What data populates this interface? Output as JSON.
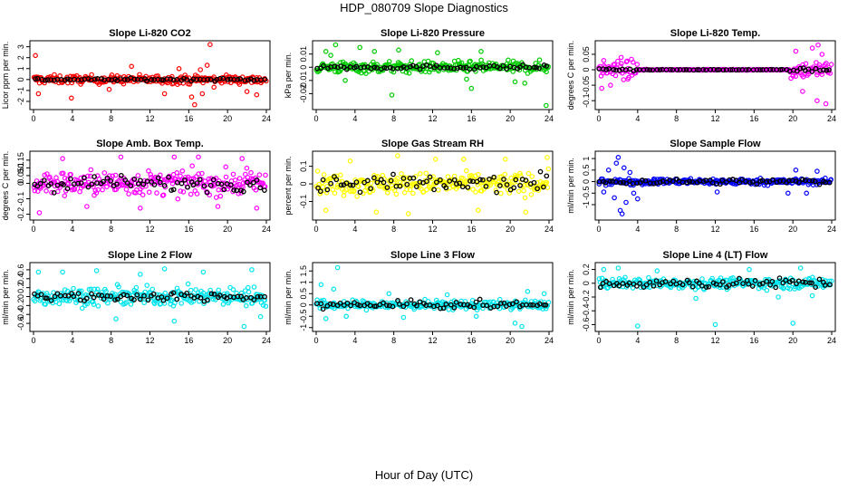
{
  "figure": {
    "title": "HDP_080709  Slope Diagnostics",
    "xlabel": "Hour of Day (UTC)"
  },
  "chart_data": [
    {
      "type": "scatter",
      "title": "Slope Li-820 CO2",
      "ylabel": "Licor ppm per min.",
      "color": "#ff0000",
      "xlim": [
        0,
        24
      ],
      "ylim": [
        -2.5,
        3.3
      ],
      "xticks": [
        0,
        4,
        8,
        12,
        16,
        20,
        24
      ],
      "yticks": [
        -2,
        -1,
        0,
        1,
        2,
        3
      ],
      "noise": 0.35,
      "blackNoise": 0.08,
      "outliers": [
        [
          0.2,
          2.2
        ],
        [
          0.5,
          -1.3
        ],
        [
          3.9,
          -1.7
        ],
        [
          7.8,
          -0.9
        ],
        [
          10.1,
          1.2
        ],
        [
          13.5,
          -1.3
        ],
        [
          15.0,
          1.0
        ],
        [
          16.3,
          -1.6
        ],
        [
          16.6,
          -2.3
        ],
        [
          17.2,
          0.9
        ],
        [
          17.4,
          -1.3
        ],
        [
          17.9,
          1.3
        ],
        [
          18.2,
          3.2
        ],
        [
          18.6,
          -0.7
        ],
        [
          22.0,
          -1.1
        ],
        [
          23.0,
          -1.4
        ]
      ]
    },
    {
      "type": "scatter",
      "title": "Slope Li-820 Pressure",
      "ylabel": "kPa per min.",
      "color": "#00cc00",
      "xlim": [
        0,
        24
      ],
      "ylim": [
        -0.03,
        0.018
      ],
      "xticks": [
        0,
        4,
        8,
        12,
        16,
        20,
        24
      ],
      "yticks": [
        -0.02,
        -0.01,
        0.0,
        0.01
      ],
      "noise": 0.004,
      "blackNoise": 0.0012,
      "outliers": [
        [
          1.0,
          0.012
        ],
        [
          1.5,
          0.009
        ],
        [
          2.0,
          0.017
        ],
        [
          3.0,
          -0.01
        ],
        [
          4.5,
          0.015
        ],
        [
          6.0,
          0.012
        ],
        [
          7.8,
          -0.021
        ],
        [
          8.5,
          0.013
        ],
        [
          12.5,
          0.011
        ],
        [
          15.5,
          -0.009
        ],
        [
          16.0,
          -0.016
        ],
        [
          17.0,
          0.012
        ],
        [
          20.5,
          -0.011
        ],
        [
          21.5,
          -0.012
        ],
        [
          23.7,
          -0.029
        ]
      ]
    },
    {
      "type": "scatter",
      "title": "Slope Li-820 Temp.",
      "ylabel": "degrees C per min.",
      "color": "#ff00ff",
      "xlim": [
        0,
        24
      ],
      "ylim": [
        -0.12,
        0.085
      ],
      "xticks": [
        0,
        4,
        8,
        12,
        16,
        20,
        24
      ],
      "yticks": [
        -0.1,
        -0.05,
        0.0,
        0.05
      ],
      "noise": 0.025,
      "blackNoise": 0.006,
      "outliers": [
        [
          0.3,
          -0.06
        ],
        [
          0.5,
          0.03
        ],
        [
          1.2,
          -0.05
        ],
        [
          2.3,
          0.04
        ],
        [
          3.0,
          -0.03
        ],
        [
          20.3,
          0.06
        ],
        [
          21.0,
          -0.07
        ],
        [
          22.0,
          0.07
        ],
        [
          22.5,
          -0.1
        ],
        [
          23.0,
          0.05
        ],
        [
          23.4,
          -0.11
        ],
        [
          22.6,
          0.08
        ]
      ]
    },
    {
      "type": "scatter",
      "title": "Slope Amb. Box Temp.",
      "ylabel": "degrees C per min.",
      "color": "#ff00ff",
      "xlim": [
        0,
        24
      ],
      "ylim": [
        -0.22,
        0.19
      ],
      "xticks": [
        0,
        4,
        8,
        12,
        16,
        20,
        24
      ],
      "yticks": [
        -0.2,
        -0.1,
        0.0,
        0.05,
        0.1,
        0.15
      ],
      "noise": 0.07,
      "blackNoise": 0.035,
      "outliers": [
        [
          0.6,
          -0.19
        ],
        [
          3.0,
          0.16
        ],
        [
          5.5,
          -0.15
        ],
        [
          9.0,
          0.17
        ],
        [
          11.0,
          -0.16
        ],
        [
          14.5,
          0.17
        ],
        [
          17.0,
          0.17
        ],
        [
          19.0,
          -0.15
        ],
        [
          21.5,
          0.16
        ],
        [
          23.0,
          -0.16
        ]
      ]
    },
    {
      "type": "scatter",
      "title": "Slope Gas Stream RH",
      "ylabel": "percent per min.",
      "color": "#ffff00",
      "xlim": [
        0,
        24
      ],
      "ylim": [
        -0.19,
        0.17
      ],
      "xticks": [
        0,
        4,
        8,
        12,
        16,
        20,
        24
      ],
      "yticks": [
        -0.1,
        0.0,
        0.1
      ],
      "noise": 0.055,
      "blackNoise": 0.035,
      "outliers": [
        [
          1.0,
          -0.15
        ],
        [
          3.5,
          0.13
        ],
        [
          6.2,
          -0.16
        ],
        [
          8.4,
          0.16
        ],
        [
          9.5,
          -0.17
        ],
        [
          12.3,
          0.14
        ],
        [
          15.2,
          0.14
        ],
        [
          16.7,
          -0.15
        ],
        [
          19.5,
          0.14
        ],
        [
          21.6,
          -0.16
        ],
        [
          23.8,
          0.15
        ]
      ]
    },
    {
      "type": "scatter",
      "title": "Slope Sample Flow",
      "ylabel": "ml/min per min.",
      "color": "#0000ff",
      "xlim": [
        0,
        24
      ],
      "ylim": [
        -1.55,
        1.2
      ],
      "xticks": [
        0,
        4,
        8,
        12,
        16,
        20,
        24
      ],
      "yticks": [
        -1.0,
        -0.5,
        0.0,
        0.5,
        1.0
      ],
      "noise": 0.12,
      "blackNoise": 0.08,
      "outliers": [
        [
          0.5,
          -0.45
        ],
        [
          1.0,
          0.5
        ],
        [
          1.6,
          -0.7
        ],
        [
          1.8,
          0.8
        ],
        [
          2.0,
          1.05
        ],
        [
          2.2,
          -1.25
        ],
        [
          2.4,
          -1.4
        ],
        [
          2.6,
          0.6
        ],
        [
          2.8,
          -0.9
        ],
        [
          3.2,
          0.4
        ],
        [
          3.6,
          -0.5
        ],
        [
          4.0,
          -0.75
        ],
        [
          12.2,
          -0.45
        ],
        [
          19.5,
          -0.5
        ],
        [
          20.3,
          0.5
        ],
        [
          21.4,
          -0.5
        ],
        [
          22.5,
          0.45
        ]
      ]
    },
    {
      "type": "scatter",
      "title": "Slope Line 2 Flow",
      "ylabel": "ml/min per min.",
      "color": "#00e5ee",
      "xlim": [
        0,
        24
      ],
      "ylim": [
        -0.72,
        0.7
      ],
      "xticks": [
        0,
        4,
        8,
        12,
        16,
        20,
        24
      ],
      "yticks": [
        -0.6,
        -0.4,
        -0.2,
        0.0,
        0.2,
        0.4,
        0.6
      ],
      "noise": 0.18,
      "blackNoise": 0.08,
      "outliers": [
        [
          0.5,
          0.55
        ],
        [
          3.0,
          0.55
        ],
        [
          6.5,
          0.58
        ],
        [
          8.5,
          -0.5
        ],
        [
          11.0,
          0.5
        ],
        [
          13.5,
          0.62
        ],
        [
          14.5,
          -0.55
        ],
        [
          17.5,
          0.55
        ],
        [
          21.7,
          -0.67
        ],
        [
          22.5,
          0.6
        ],
        [
          23.4,
          -0.45
        ]
      ]
    },
    {
      "type": "scatter",
      "title": "Slope Line 3 Flow",
      "ylabel": "ml/min per min.",
      "color": "#00e5ee",
      "xlim": [
        0,
        24
      ],
      "ylim": [
        -1.05,
        1.75
      ],
      "xticks": [
        0,
        4,
        8,
        12,
        16,
        20,
        24
      ],
      "yticks": [
        -1.0,
        -0.5,
        0.0,
        0.5,
        1.0,
        1.5
      ],
      "noise": 0.18,
      "blackNoise": 0.12,
      "outliers": [
        [
          0.5,
          0.9
        ],
        [
          1.0,
          -0.6
        ],
        [
          1.8,
          0.7
        ],
        [
          2.2,
          1.65
        ],
        [
          3.1,
          -0.5
        ],
        [
          7.5,
          0.5
        ],
        [
          9.0,
          -0.55
        ],
        [
          13.5,
          0.45
        ],
        [
          16.5,
          -0.5
        ],
        [
          20.5,
          -0.8
        ],
        [
          21.2,
          -0.95
        ],
        [
          21.8,
          0.6
        ],
        [
          23.5,
          0.5
        ]
      ]
    },
    {
      "type": "scatter",
      "title": "Slope Line 4 (LT) Flow",
      "ylabel": "ml/min per min.",
      "color": "#00e5ee",
      "xlim": [
        0,
        24
      ],
      "ylim": [
        -0.66,
        0.26
      ],
      "xticks": [
        0,
        4,
        8,
        12,
        16,
        20,
        24
      ],
      "yticks": [
        -0.6,
        -0.4,
        -0.2,
        0.0,
        0.2
      ],
      "noise": 0.07,
      "blackNoise": 0.05,
      "outliers": [
        [
          0.5,
          0.2
        ],
        [
          2.0,
          0.22
        ],
        [
          4.0,
          -0.62
        ],
        [
          6.0,
          0.18
        ],
        [
          10.0,
          -0.22
        ],
        [
          12.0,
          -0.6
        ],
        [
          15.5,
          0.2
        ],
        [
          18.5,
          -0.2
        ],
        [
          20.0,
          -0.58
        ],
        [
          20.8,
          0.22
        ],
        [
          22.0,
          -0.18
        ]
      ]
    }
  ]
}
